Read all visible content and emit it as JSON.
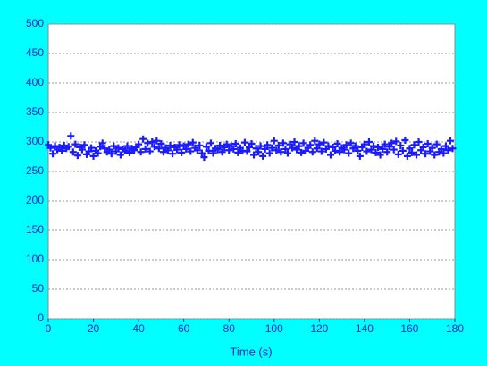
{
  "chart_data": {
    "type": "scatter",
    "x_label": "Time (s)",
    "x": [
      0,
      1,
      2,
      3,
      4,
      5,
      6,
      7,
      8,
      9,
      10,
      11,
      12,
      13,
      14,
      15,
      16,
      17,
      18,
      19,
      20,
      21,
      22,
      23,
      24,
      25,
      26,
      27,
      28,
      29,
      30,
      31,
      32,
      33,
      34,
      35,
      36,
      37,
      38,
      39,
      40,
      41,
      42,
      43,
      44,
      45,
      46,
      47,
      48,
      49,
      50,
      51,
      52,
      53,
      54,
      55,
      56,
      57,
      58,
      59,
      60,
      61,
      62,
      63,
      64,
      65,
      66,
      67,
      68,
      69,
      70,
      71,
      72,
      73,
      74,
      75,
      76,
      77,
      78,
      79,
      80,
      81,
      82,
      83,
      84,
      85,
      86,
      87,
      88,
      89,
      90,
      91,
      92,
      93,
      94,
      95,
      96,
      97,
      98,
      99,
      100,
      101,
      102,
      103,
      104,
      105,
      106,
      107,
      108,
      109,
      110,
      111,
      112,
      113,
      114,
      115,
      116,
      117,
      118,
      119,
      120,
      121,
      122,
      123,
      124,
      125,
      126,
      127,
      128,
      129,
      130,
      131,
      132,
      133,
      134,
      135,
      136,
      137,
      138,
      139,
      140,
      141,
      142,
      143,
      144,
      145,
      146,
      147,
      148,
      149,
      150,
      151,
      152,
      153,
      154,
      155,
      156,
      157,
      158,
      159,
      160,
      161,
      162,
      163,
      164,
      165,
      166,
      167,
      168,
      169,
      170,
      171,
      172,
      173,
      174,
      175,
      176,
      177,
      178,
      179
    ],
    "series": [
      {
        "color": "#1a1aff",
        "values": [
          295,
          290,
          280,
          293,
          287,
          291,
          285,
          294,
          289,
          292,
          310,
          283,
          296,
          277,
          291,
          287,
          295,
          279,
          284,
          290,
          276,
          285,
          281,
          292,
          298,
          289,
          283,
          287,
          280,
          293,
          284,
          290,
          278,
          288,
          285,
          293,
          282,
          289,
          286,
          291,
          296,
          283,
          305,
          288,
          298,
          284,
          300,
          292,
          302,
          289,
          297,
          283,
          290,
          286,
          294,
          280,
          291,
          287,
          295,
          282,
          293,
          288,
          296,
          284,
          299,
          290,
          286,
          294,
          281,
          274,
          292,
          285,
          298,
          281,
          289,
          287,
          294,
          283,
          291,
          296,
          286,
          293,
          288,
          297,
          282,
          290,
          285,
          299,
          284,
          291,
          297,
          278,
          289,
          283,
          293,
          276,
          288,
          295,
          281,
          290,
          302,
          286,
          294,
          283,
          298,
          288,
          281,
          296,
          290,
          300,
          287,
          293,
          282,
          298,
          285,
          290,
          295,
          283,
          302,
          289,
          296,
          284,
          299,
          288,
          293,
          278,
          291,
          285,
          297,
          283,
          290,
          287,
          295,
          281,
          298,
          289,
          293,
          285,
          276,
          291,
          296,
          284,
          300,
          287,
          293,
          282,
          291,
          278,
          288,
          296,
          283,
          292,
          298,
          287,
          301,
          279,
          294,
          285,
          303,
          276,
          289,
          282,
          295,
          278,
          300,
          286,
          291,
          280,
          297,
          284,
          290,
          278,
          296,
          283,
          288,
          281,
          293,
          286,
          302,
          289
        ]
      }
    ],
    "xlim": [
      0,
      180
    ],
    "xticks": [
      0,
      20,
      40,
      60,
      80,
      100,
      120,
      140,
      160,
      180
    ],
    "ylim": [
      0,
      500
    ],
    "yticks": [
      0,
      50,
      100,
      150,
      200,
      250,
      300,
      350,
      400,
      450,
      500
    ],
    "grid": true
  }
}
